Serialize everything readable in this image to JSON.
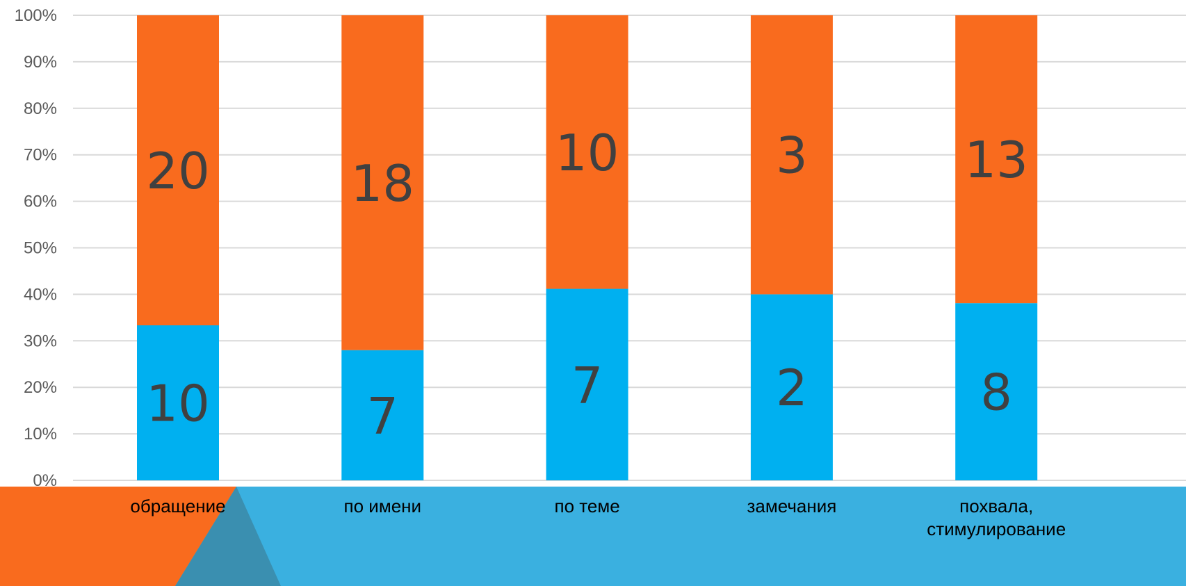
{
  "chart_data": {
    "type": "bar",
    "stacked": true,
    "normalized_percent": true,
    "categories": [
      "обращение",
      "по имени",
      "по теме",
      "замечания",
      [
        "похвала,",
        "стимулирование"
      ]
    ],
    "series": [
      {
        "values": [
          10,
          7,
          7,
          2,
          8
        ],
        "color": "#00B0F0"
      },
      {
        "values": [
          20,
          18,
          10,
          3,
          13
        ],
        "color": "#F96B1E"
      }
    ],
    "yticks": [
      "0%",
      "10%",
      "20%",
      "30%",
      "40%",
      "50%",
      "60%",
      "70%",
      "80%",
      "90%",
      "100%"
    ],
    "ylim": [
      0,
      100
    ],
    "grid": true,
    "legend": "none"
  },
  "colors": {
    "grid": "#D9D9D9",
    "footer_band": "#3AB0E0",
    "footer_accent": "#F96B1E",
    "footer_shadow": "#3A8FB0"
  }
}
